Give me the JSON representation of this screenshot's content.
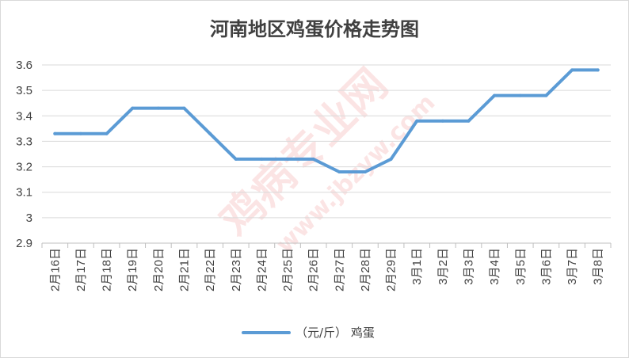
{
  "chart_data": {
    "type": "line",
    "title": "河南地区鸡蛋价格走势图",
    "categories": [
      "2月16日",
      "2月17日",
      "2月18日",
      "2月19日",
      "2月20日",
      "2月21日",
      "2月22日",
      "2月23日",
      "2月24日",
      "2月25日",
      "2月26日",
      "2月27日",
      "2月28日",
      "2月29日",
      "3月1日",
      "3月2日",
      "3月3日",
      "3月4日",
      "3月5日",
      "3月6日",
      "3月7日",
      "3月8日"
    ],
    "series": [
      {
        "name": "（元/斤） 鸡蛋",
        "color": "#5b9bd5",
        "values": [
          3.33,
          3.33,
          3.33,
          3.43,
          3.43,
          3.43,
          3.33,
          3.23,
          3.23,
          3.23,
          3.23,
          3.18,
          3.18,
          3.23,
          3.38,
          3.38,
          3.38,
          3.48,
          3.48,
          3.48,
          3.58,
          3.58
        ]
      }
    ],
    "yticks": [
      "3.6",
      "3.5",
      "3.4",
      "3.3",
      "3.2",
      "3.1",
      "3",
      "2.9"
    ],
    "ylim": [
      2.9,
      3.6
    ],
    "grid": true,
    "legend": "bottom"
  },
  "watermark": {
    "text": "鸡病专业网",
    "url": "www.jbzyw.com"
  }
}
